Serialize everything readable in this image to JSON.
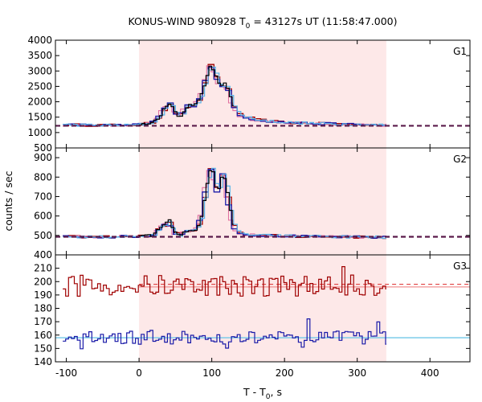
{
  "title": {
    "prefix": "KONUS-WIND 980928 T",
    "sub": "0",
    "suffix": " = 43127s UT (11:58:47.000)"
  },
  "xlabel": {
    "prefix": "T - T",
    "sub": "0",
    "suffix": ", s"
  },
  "ylabel": "counts / sec",
  "colors": {
    "shade": "#fde8e8",
    "dark_red": "#a00000",
    "pink": "#e070a0",
    "blue": "#1a1aa8",
    "light_blue": "#5ab4e8",
    "black": "#000000",
    "bg_dash": "#5a1a4a",
    "g3_red_fit": "#e04040",
    "g3_pink_fit": "#f09090",
    "g3_cyan_fit": "#70c8e8"
  },
  "chart_data": {
    "type": "line",
    "x_range": [
      -115,
      455
    ],
    "x_ticks": [
      -100,
      0,
      100,
      200,
      300,
      400
    ],
    "shaded_interval": [
      0,
      340
    ],
    "panels": [
      {
        "name": "G1",
        "ylim": [
          500,
          4000
        ],
        "y_ticks": [
          500,
          1000,
          1500,
          2000,
          2500,
          3000,
          3500,
          4000
        ],
        "background_level": 1220,
        "profile": [
          [
            -100,
            1250
          ],
          [
            -60,
            1240
          ],
          [
            -20,
            1235
          ],
          [
            0,
            1250
          ],
          [
            10,
            1280
          ],
          [
            20,
            1340
          ],
          [
            28,
            1500
          ],
          [
            35,
            1750
          ],
          [
            40,
            1900
          ],
          [
            45,
            1950
          ],
          [
            50,
            1700
          ],
          [
            55,
            1500
          ],
          [
            60,
            1600
          ],
          [
            65,
            1800
          ],
          [
            70,
            1900
          ],
          [
            75,
            1850
          ],
          [
            80,
            1950
          ],
          [
            85,
            2150
          ],
          [
            90,
            2500
          ],
          [
            95,
            2900
          ],
          [
            98,
            3200
          ],
          [
            102,
            3100
          ],
          [
            106,
            2900
          ],
          [
            110,
            2600
          ],
          [
            115,
            2500
          ],
          [
            120,
            2600
          ],
          [
            125,
            2300
          ],
          [
            130,
            1900
          ],
          [
            135,
            1700
          ],
          [
            140,
            1550
          ],
          [
            150,
            1500
          ],
          [
            160,
            1420
          ],
          [
            170,
            1400
          ],
          [
            180,
            1370
          ],
          [
            200,
            1330
          ],
          [
            250,
            1290
          ],
          [
            300,
            1260
          ],
          [
            340,
            1240
          ]
        ]
      },
      {
        "name": "G2",
        "ylim": [
          400,
          950
        ],
        "y_ticks": [
          400,
          500,
          600,
          700,
          800,
          900
        ],
        "background_level": 493,
        "profile": [
          [
            -115,
            495
          ],
          [
            -60,
            492
          ],
          [
            0,
            495
          ],
          [
            20,
            500
          ],
          [
            30,
            540
          ],
          [
            38,
            560
          ],
          [
            42,
            580
          ],
          [
            48,
            520
          ],
          [
            55,
            500
          ],
          [
            65,
            520
          ],
          [
            75,
            525
          ],
          [
            82,
            540
          ],
          [
            88,
            620
          ],
          [
            92,
            720
          ],
          [
            96,
            800
          ],
          [
            100,
            850
          ],
          [
            104,
            810
          ],
          [
            108,
            720
          ],
          [
            112,
            760
          ],
          [
            116,
            820
          ],
          [
            120,
            780
          ],
          [
            125,
            650
          ],
          [
            130,
            560
          ],
          [
            135,
            520
          ],
          [
            145,
            505
          ],
          [
            170,
            500
          ],
          [
            220,
            495
          ],
          [
            340,
            490
          ]
        ]
      },
      {
        "name": "G3",
        "ylim": [
          140,
          220
        ],
        "y_ticks": [
          140,
          150,
          160,
          170,
          180,
          190,
          200,
          210
        ],
        "red_level": 198,
        "pink_level": 196,
        "cyan_level": 158,
        "red_mean": 197,
        "blue_mean": 158
      }
    ]
  }
}
